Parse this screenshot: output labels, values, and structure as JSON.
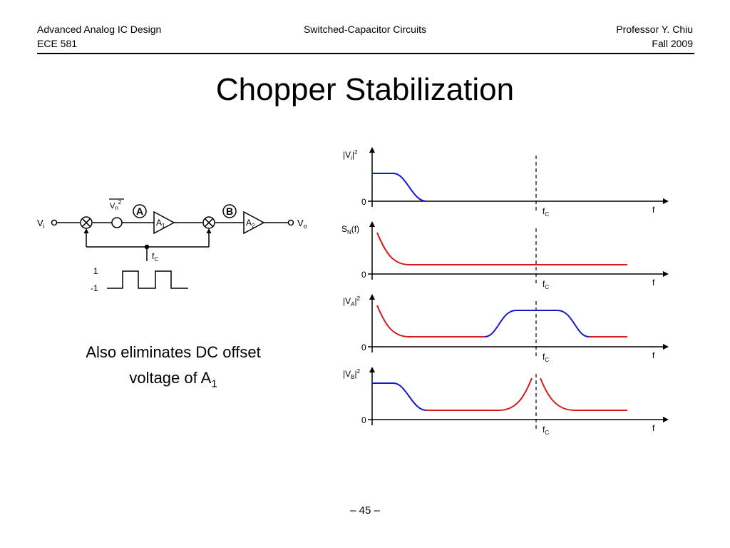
{
  "header": {
    "course": "Advanced Analog IC Design",
    "code": "ECE 581",
    "topic": "Switched-Capacitor Circuits",
    "professor": "Professor Y. Chiu",
    "term": "Fall 2009"
  },
  "slide": {
    "title": "Chopper Stabilization",
    "note_line1": "Also eliminates DC offset",
    "note_line2": "voltage of A",
    "note_sub": "1",
    "page_number": "– 45 –"
  },
  "circuit": {
    "input": {
      "main": "V",
      "sub": "i"
    },
    "output": {
      "main": "V",
      "sub": "o"
    },
    "noise": {
      "main": "V",
      "sub": "n",
      "sup": "2"
    },
    "node_a": "A",
    "node_b": "B",
    "amp1": {
      "main": "A",
      "sub": "1"
    },
    "amp2": {
      "main": "A",
      "sub": "2"
    },
    "clock": {
      "main": "f",
      "sub": "C"
    },
    "level_high": "1",
    "level_low": "-1"
  },
  "plots": {
    "zero_label": "0",
    "f_label": "f",
    "fc_label": {
      "main": "f",
      "sub": "C"
    },
    "p1_ylabel": {
      "pre": "|V",
      "sub": "i",
      "post": "|",
      "sup": "2"
    },
    "p2_ylabel": {
      "pre": "S",
      "sub": "N",
      "post": "(f)"
    },
    "p3_ylabel": {
      "pre": "|V",
      "sub": "A",
      "post": "|",
      "sup": "2"
    },
    "p4_ylabel": {
      "pre": "|V",
      "sub": "B",
      "post": "|",
      "sup": "2"
    }
  },
  "colors": {
    "signal": "#1515cc",
    "noise": "#d41a1a"
  }
}
